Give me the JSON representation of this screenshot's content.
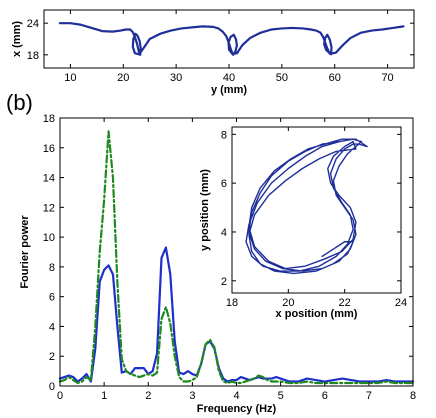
{
  "panel_label": "(b)",
  "chart_data": [
    {
      "id": "top-trajectory",
      "type": "line",
      "title": "",
      "xlabel": "y (mm)",
      "ylabel": "x (mm)",
      "xlim": [
        5,
        75
      ],
      "ylim": [
        15.5,
        26.5
      ],
      "xticks": [
        10,
        20,
        30,
        40,
        50,
        60,
        70
      ],
      "yticks": [
        18,
        24
      ],
      "grid": false,
      "series": [
        {
          "color": "#1f2f9a",
          "style": "solid",
          "x": [
            8.0,
            10,
            12,
            14,
            16,
            18,
            19.5,
            20.5,
            21.3,
            21.8,
            22.2,
            22.6,
            22.9,
            23.2,
            23.3,
            23.1,
            22.7,
            22.3,
            21.9,
            21.8,
            22.2,
            23.0,
            24.0,
            25,
            27,
            29,
            31,
            33,
            35,
            37,
            38,
            38.8,
            39.5,
            40.0,
            40.4,
            40.8,
            41.2,
            41.5,
            41.3,
            40.9,
            40.3,
            39.9,
            40.0,
            40.6,
            41.5,
            42.5,
            44,
            46,
            48,
            50,
            52,
            54,
            55.5,
            56.5,
            57.3,
            57.8,
            58.2,
            58.6,
            59.0,
            59.3,
            59.4,
            59.1,
            58.6,
            58.2,
            58.0,
            58.4,
            59.2,
            60.2,
            61.5,
            63,
            65,
            67,
            69,
            71,
            73.0
          ],
          "y": [
            24.0,
            24.0,
            23.7,
            23.1,
            22.5,
            22.4,
            22.6,
            22.8,
            22.8,
            22.3,
            21.4,
            20.1,
            18.8,
            18.0,
            19.2,
            20.6,
            21.6,
            22.0,
            21.0,
            19.5,
            18.3,
            18.1,
            19.5,
            21.0,
            22.0,
            22.6,
            23.0,
            23.2,
            23.4,
            23.3,
            23.0,
            22.4,
            21.5,
            20.2,
            18.9,
            18.0,
            18.6,
            19.8,
            21.0,
            21.8,
            21.4,
            20.3,
            19.0,
            18.2,
            18.3,
            19.8,
            21.2,
            22.2,
            22.8,
            23.0,
            23.1,
            23.0,
            22.8,
            22.6,
            22.2,
            21.4,
            20.3,
            19.2,
            18.3,
            18.1,
            19.4,
            20.8,
            21.8,
            21.2,
            20.0,
            18.9,
            18.2,
            18.4,
            19.8,
            21.2,
            22.2,
            22.6,
            22.8,
            23.1,
            23.4
          ]
        }
      ]
    },
    {
      "id": "fourier-spectrum",
      "type": "line",
      "title": "",
      "xlabel": "Frequency (Hz)",
      "ylabel": "Fourier power",
      "xlim": [
        0,
        8
      ],
      "ylim": [
        0,
        18
      ],
      "xticks": [
        0,
        1,
        2,
        3,
        4,
        5,
        6,
        7,
        8
      ],
      "yticks": [
        0,
        2,
        4,
        6,
        8,
        10,
        12,
        14,
        16,
        18
      ],
      "grid": false,
      "series": [
        {
          "color": "#1f2fcc",
          "style": "solid",
          "x": [
            0,
            0.1,
            0.2,
            0.3,
            0.4,
            0.5,
            0.6,
            0.7,
            0.8,
            0.9,
            1.0,
            1.1,
            1.2,
            1.3,
            1.4,
            1.5,
            1.6,
            1.7,
            1.8,
            1.9,
            2.0,
            2.1,
            2.2,
            2.3,
            2.4,
            2.5,
            2.6,
            2.7,
            2.8,
            2.9,
            3.0,
            3.1,
            3.2,
            3.3,
            3.4,
            3.5,
            3.6,
            3.7,
            3.8,
            3.9,
            4.0,
            4.1,
            4.2,
            4.3,
            4.4,
            4.5,
            4.6,
            4.7,
            4.8,
            4.9,
            5.0,
            5.2,
            5.4,
            5.6,
            5.8,
            6.0,
            6.2,
            6.4,
            6.6,
            6.8,
            7.0,
            7.2,
            7.4,
            7.6,
            7.8,
            8.0
          ],
          "y": [
            0.5,
            0.6,
            0.7,
            0.6,
            0.3,
            0.5,
            0.8,
            0.3,
            2.5,
            7.0,
            7.8,
            8.1,
            7.5,
            4.0,
            0.9,
            1.0,
            0.8,
            1.2,
            1.2,
            1.2,
            0.8,
            1.0,
            2.2,
            8.6,
            9.3,
            7.5,
            3.0,
            0.9,
            0.8,
            1.0,
            0.8,
            0.7,
            1.5,
            2.8,
            3.0,
            2.5,
            1.2,
            0.5,
            0.3,
            0.4,
            0.4,
            0.6,
            0.5,
            0.4,
            0.5,
            0.6,
            0.5,
            0.5,
            0.5,
            0.6,
            0.5,
            0.3,
            0.3,
            0.5,
            0.4,
            0.3,
            0.4,
            0.5,
            0.4,
            0.3,
            0.3,
            0.3,
            0.4,
            0.3,
            0.3,
            0.3
          ]
        },
        {
          "color": "#1e8a1e",
          "style": "dashdot",
          "x": [
            0,
            0.1,
            0.2,
            0.3,
            0.4,
            0.5,
            0.6,
            0.7,
            0.8,
            0.9,
            1.0,
            1.1,
            1.2,
            1.3,
            1.4,
            1.5,
            1.6,
            1.7,
            1.8,
            1.9,
            2.0,
            2.1,
            2.2,
            2.3,
            2.4,
            2.5,
            2.6,
            2.7,
            2.8,
            2.9,
            3.0,
            3.1,
            3.2,
            3.3,
            3.4,
            3.5,
            3.6,
            3.7,
            3.8,
            3.9,
            4.0,
            4.1,
            4.2,
            4.3,
            4.4,
            4.5,
            4.6,
            4.7,
            4.8,
            4.9,
            5.0,
            5.2,
            5.4,
            5.6,
            5.8,
            6.0,
            6.2,
            6.4,
            6.6,
            6.8,
            7.0,
            7.2,
            7.4,
            7.6,
            7.8,
            8.0
          ],
          "y": [
            0.3,
            0.4,
            0.6,
            0.4,
            0.2,
            0.3,
            0.6,
            0.4,
            4.0,
            9.0,
            12.5,
            17.1,
            14.0,
            7.0,
            1.8,
            1.0,
            0.8,
            0.7,
            0.6,
            0.7,
            0.8,
            0.7,
            0.9,
            4.5,
            5.3,
            4.2,
            2.0,
            0.6,
            0.3,
            0.3,
            0.4,
            0.6,
            1.5,
            2.8,
            3.1,
            2.6,
            1.0,
            0.3,
            0.2,
            0.3,
            0.2,
            0.2,
            0.3,
            0.4,
            0.5,
            0.7,
            0.6,
            0.4,
            0.3,
            0.3,
            0.3,
            0.2,
            0.2,
            0.3,
            0.2,
            0.2,
            0.2,
            0.2,
            0.2,
            0.2,
            0.2,
            0.2,
            0.3,
            0.2,
            0.2,
            0.2
          ]
        }
      ]
    },
    {
      "id": "inset-position",
      "type": "line",
      "title": "",
      "xlabel": "x position (mm)",
      "ylabel": "y position (mm)",
      "xlim": [
        18,
        24
      ],
      "ylim": [
        1.5,
        8.3
      ],
      "xticks": [
        18,
        20,
        22,
        24
      ],
      "yticks": [
        2,
        4,
        6,
        8
      ],
      "grid": false,
      "series": [
        {
          "color": "#1f2f9a",
          "style": "solid",
          "x": [
            21.8,
            21.2,
            20.6,
            20.0,
            19.4,
            19.0,
            18.7,
            18.6,
            18.8,
            19.2,
            19.8,
            20.5,
            21.2,
            21.8,
            22.2,
            22.4,
            22.3,
            22.0,
            21.7,
            21.6,
            21.8,
            22.1,
            22.4,
            22.6,
            22.3,
            21.8,
            21.2,
            20.6,
            20.0,
            19.4,
            18.9,
            18.6,
            18.5,
            18.7,
            19.1,
            19.7,
            20.4,
            21.1,
            21.7,
            22.1,
            22.3,
            22.2,
            21.9,
            21.6,
            21.5,
            21.7,
            22.0,
            22.3,
            22.5,
            22.8,
            22.4,
            21.9,
            21.3,
            20.7,
            20.1,
            19.5,
            19.0,
            18.7,
            18.6,
            18.8,
            19.3,
            19.9,
            20.6,
            21.3,
            21.9,
            22.3,
            22.4,
            22.2,
            21.8,
            21.5,
            21.4,
            21.6,
            22.0,
            22.3,
            22.4,
            21.7,
            21.1,
            20.5,
            19.9,
            19.3,
            18.8,
            18.6,
            18.7,
            19.0,
            19.5,
            20.2,
            21.0,
            21.6,
            22.1,
            22.3,
            22.0,
            21.6,
            21.2
          ],
          "y": [
            7.7,
            7.6,
            7.3,
            6.9,
            6.3,
            5.6,
            4.8,
            4.0,
            3.3,
            2.8,
            2.5,
            2.4,
            2.5,
            2.8,
            3.3,
            3.9,
            4.5,
            5.0,
            5.5,
            6.1,
            6.7,
            7.2,
            7.5,
            7.7,
            7.8,
            7.7,
            7.5,
            7.1,
            6.6,
            6.0,
            5.2,
            4.3,
            3.6,
            3.0,
            2.6,
            2.4,
            2.4,
            2.6,
            3.0,
            3.5,
            4.1,
            4.7,
            5.2,
            5.8,
            6.4,
            7.0,
            7.4,
            7.6,
            7.6,
            7.5,
            7.8,
            7.8,
            7.6,
            7.4,
            7.0,
            6.5,
            5.8,
            5.0,
            4.2,
            3.4,
            2.8,
            2.5,
            2.6,
            2.9,
            3.2,
            3.7,
            4.4,
            5.0,
            5.5,
            6.0,
            6.6,
            7.1,
            7.5,
            7.7,
            7.4,
            7.3,
            7.0,
            6.6,
            6.1,
            5.5,
            4.7,
            3.9,
            3.2,
            2.7,
            2.4,
            2.3,
            2.4,
            2.7,
            3.1,
            3.6,
            3.6,
            3.3,
            3.0
          ]
        }
      ]
    }
  ]
}
